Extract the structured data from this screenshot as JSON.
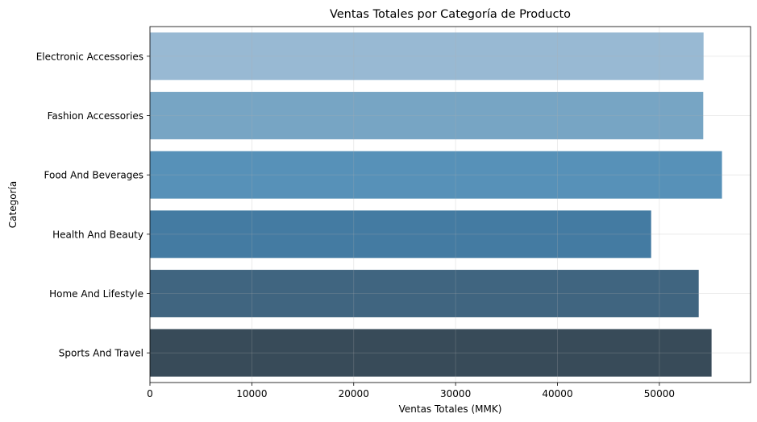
{
  "chart_data": {
    "type": "bar",
    "orientation": "horizontal",
    "title": "Ventas Totales por Categoría de Producto",
    "xlabel": "Ventas Totales (MMK)",
    "ylabel": "Categoría",
    "categories": [
      "Electronic Accessories",
      "Fashion Accessories",
      "Food And Beverages",
      "Health And Beauty",
      "Home And Lifestyle",
      "Sports And Travel"
    ],
    "values": [
      54338,
      54306,
      56145,
      49194,
      53862,
      55123
    ],
    "colors": [
      "#98b9d3",
      "#77a5c4",
      "#5791b8",
      "#447ba2",
      "#406580",
      "#384b59"
    ],
    "xlim": [
      0,
      58950
    ],
    "xticks": [
      0,
      10000,
      20000,
      30000,
      40000,
      50000
    ],
    "grid": true
  }
}
